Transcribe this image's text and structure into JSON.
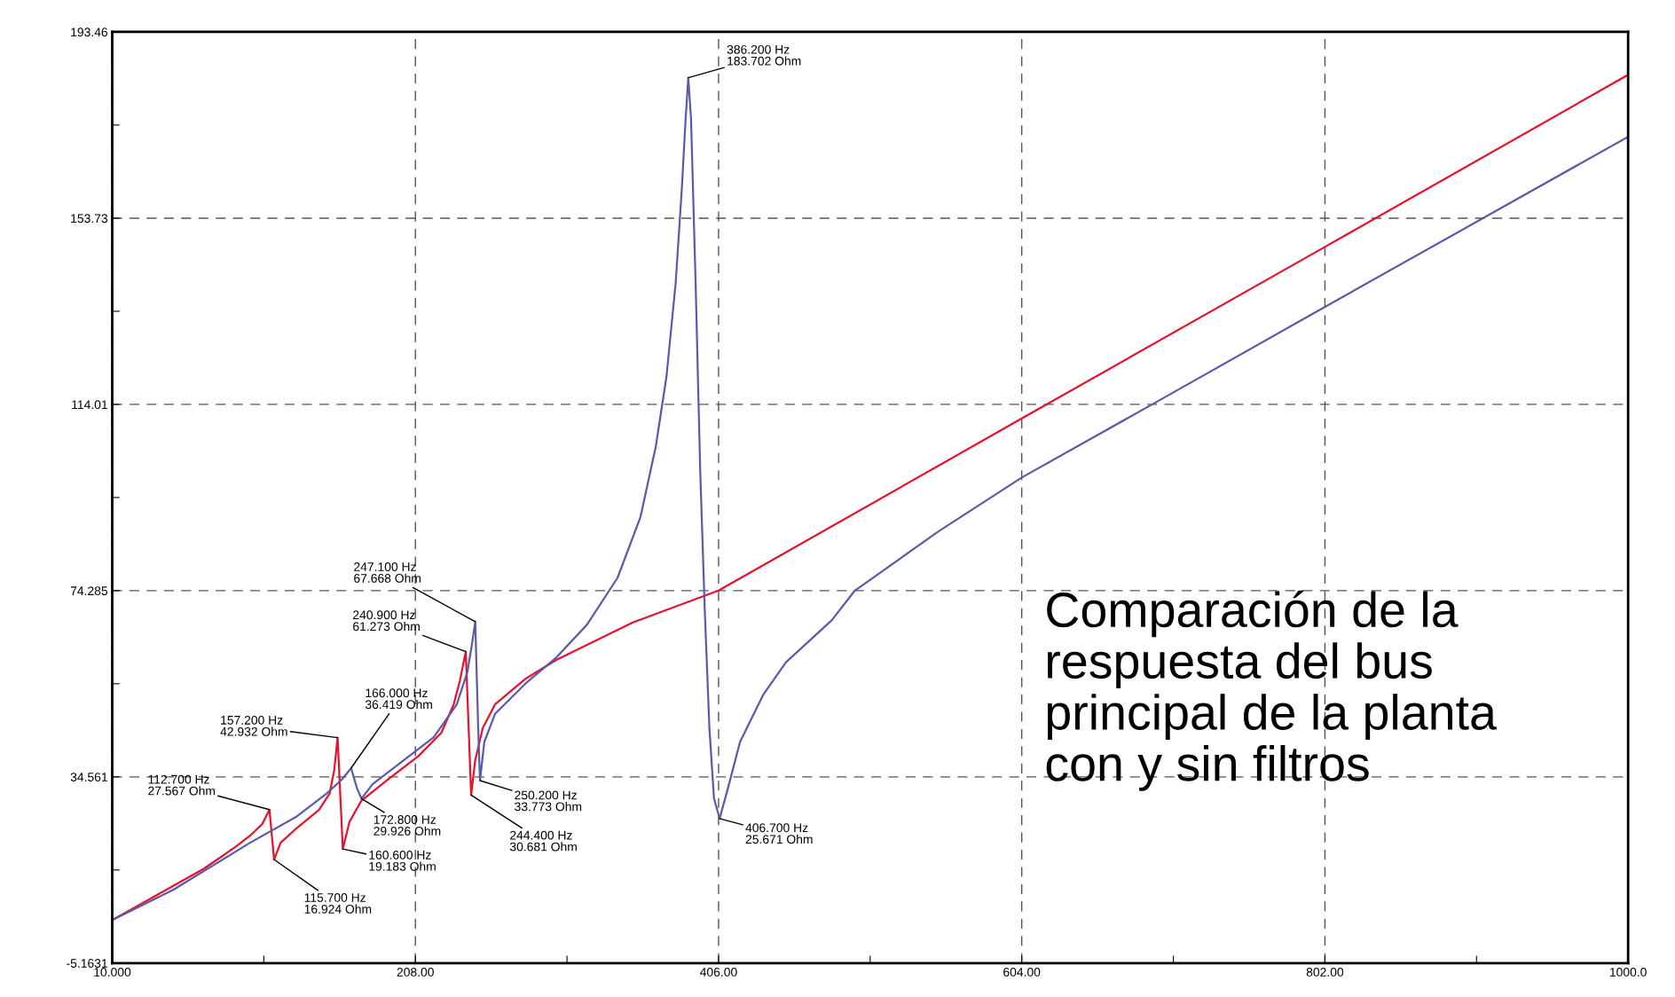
{
  "chart_data": {
    "type": "line",
    "annotations": [
      {
        "text": "112.700 Hz\n27.567 Ohm",
        "x": 112.7,
        "y": 27.567
      },
      {
        "text": "115.700 Hz\n16.924 Ohm",
        "x": 115.7,
        "y": 16.924
      },
      {
        "text": "157.200 Hz\n42.932 Ohm",
        "x": 157.2,
        "y": 42.932
      },
      {
        "text": "160.600 Hz\n19.183 Ohm",
        "x": 160.6,
        "y": 19.183
      },
      {
        "text": "166.000 Hz\n36.419 Ohm",
        "x": 166.0,
        "y": 36.419
      },
      {
        "text": "172.800 Hz\n29.926 Ohm",
        "x": 172.8,
        "y": 29.926
      },
      {
        "text": "240.900 Hz\n61.273 Ohm",
        "x": 240.9,
        "y": 61.273
      },
      {
        "text": "244.400 Hz\n30.681 Ohm",
        "x": 244.4,
        "y": 30.681
      },
      {
        "text": "247.100 Hz\n67.668 Ohm",
        "x": 247.1,
        "y": 67.668
      },
      {
        "text": "250.200 Hz\n33.773 Ohm",
        "x": 250.2,
        "y": 33.773
      },
      {
        "text": "386.200 Hz\n183.702 Ohm",
        "x": 386.2,
        "y": 183.702
      },
      {
        "text": "406.700 Hz\n25.671 Ohm",
        "x": 406.7,
        "y": 25.671
      },
      "Comparación de la\nrespuesta del bus\nprincipal de la planta\ncon y sin filtros"
    ],
    "series": [
      {
        "color": "#e8112d",
        "x": [
          10,
          40,
          70,
          90,
          100,
          108,
          112.7,
          115.7,
          120,
          130,
          145,
          152,
          155,
          157.2,
          160.6,
          165,
          172.8,
          190,
          210,
          225,
          233,
          237,
          240.9,
          244.4,
          247,
          252,
          260,
          280,
          300,
          350,
          406,
          604,
          802,
          1000
        ],
        "values": [
          4.0,
          9.5,
          15,
          19.5,
          22,
          24.5,
          27.567,
          16.924,
          20.5,
          23.5,
          27.5,
          31,
          36,
          42.932,
          19.183,
          25,
          29.5,
          34,
          39,
          44,
          50,
          55,
          61.273,
          30.681,
          38,
          45,
          50,
          55.5,
          59.5,
          67.5,
          74.3,
          111,
          147.6,
          184.3
        ]
      },
      {
        "color": "#5a5aaa",
        "x": [
          10,
          50,
          100,
          130,
          150,
          160,
          166,
          170,
          172.8,
          180,
          200,
          220,
          235,
          242,
          245,
          247.1,
          249,
          250.2,
          253,
          260,
          280,
          300,
          320,
          340,
          355,
          365,
          372,
          378,
          382,
          384.5,
          386.2,
          388,
          391,
          394,
          397,
          400,
          403,
          406.7,
          412,
          420,
          435,
          450,
          480,
          495,
          550,
          604,
          700,
          802,
          1000
        ],
        "values": [
          4.0,
          10.5,
          20.5,
          26,
          31,
          34,
          36.419,
          32,
          29.926,
          33,
          38,
          43,
          50,
          57,
          63,
          67.668,
          45,
          33.773,
          42,
          48,
          54.5,
          60,
          67,
          77,
          90,
          105,
          120,
          140,
          160,
          175,
          183.702,
          175,
          140,
          100,
          70,
          45,
          30,
          25.671,
          32,
          42,
          52,
          59,
          68,
          74.3,
          87,
          98.4,
          116,
          134.8,
          171.1
        ]
      }
    ],
    "xlim": [
      10,
      1000
    ],
    "xticks": [
      {
        "value": 10,
        "label": "10.000"
      },
      {
        "value": 109,
        "label": null
      },
      {
        "value": 208,
        "label": "208.00"
      },
      {
        "value": 307,
        "label": null
      },
      {
        "value": 406,
        "label": "406.00"
      },
      {
        "value": 505,
        "label": null
      },
      {
        "value": 604,
        "label": "604.00"
      },
      {
        "value": 703,
        "label": null
      },
      {
        "value": 802,
        "label": "802.00"
      },
      {
        "value": 901,
        "label": null
      },
      {
        "value": 1000,
        "label": "1000.0"
      }
    ],
    "ylim": [
      -5.1631,
      193.46
    ],
    "yticks": [
      -5.1631,
      {
        "value": 14.699,
        "label": null
      },
      34.561,
      {
        "value": 54.423,
        "label": null
      },
      74.285,
      {
        "value": 94.148,
        "label": null
      },
      114.01,
      {
        "value": 133.87,
        "label": null
      },
      153.73,
      {
        "value": 173.6,
        "label": null
      },
      193.46
    ],
    "grid": true,
    "line_style": "solid",
    "marker": "none"
  }
}
